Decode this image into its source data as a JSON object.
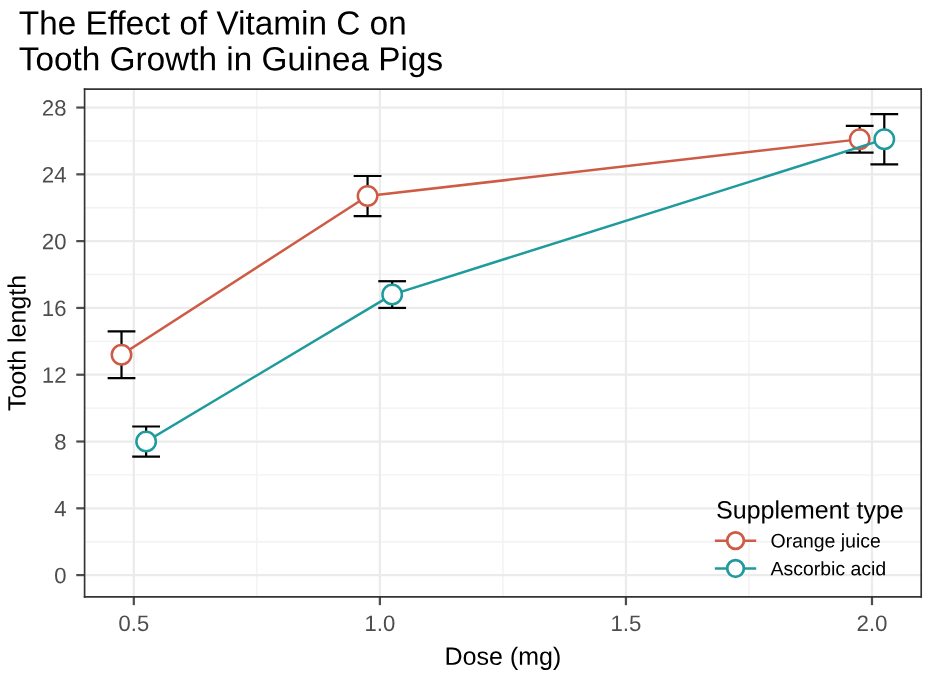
{
  "chart_data": {
    "type": "line",
    "title": "The Effect of Vitamin C on\nTooth Growth in Guinea Pigs",
    "xlabel": "Dose (mg)",
    "ylabel": "Tooth length",
    "legend_title": "Supplement type",
    "series": [
      {
        "name": "Orange juice",
        "color": "#cd5b45",
        "x": [
          0.475,
          0.975,
          1.975
        ],
        "values": [
          13.2,
          22.7,
          26.1
        ],
        "errors": [
          1.4,
          1.2,
          0.8
        ]
      },
      {
        "name": "Ascorbic acid",
        "color": "#1f9a9d",
        "x": [
          0.525,
          1.025,
          2.025
        ],
        "values": [
          8.0,
          16.8,
          26.1
        ],
        "errors": [
          0.9,
          0.8,
          1.5
        ]
      }
    ],
    "xlim": [
      0.4,
      2.1
    ],
    "xticks": [
      0.5,
      {
        "value": 1,
        "label": "1.0"
      },
      1.5,
      {
        "value": 2,
        "label": "2.0"
      }
    ],
    "ylim": [
      -1.3,
      29.1
    ],
    "yticks": [
      0,
      4,
      8,
      12,
      16,
      20,
      24,
      28
    ],
    "grid": true,
    "legend": "bottom right",
    "marker": "circle",
    "line_style": "solid"
  }
}
